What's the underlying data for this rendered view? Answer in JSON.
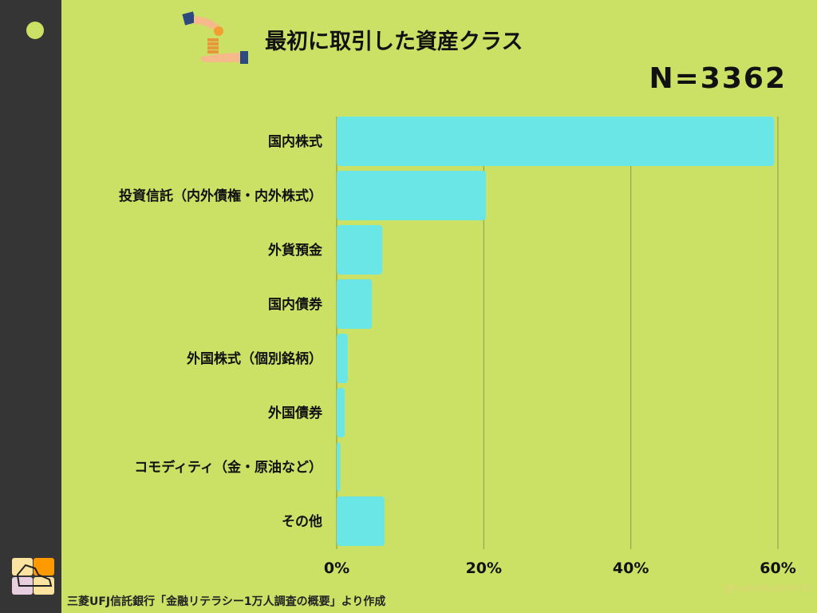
{
  "header": {
    "title": "最初に取引した資産クラス",
    "n_label": "N=3362"
  },
  "footer": {
    "source": "三菱UFJ信託銀行「金融リテラシー1万人調査の概要」より作成",
    "watermark": "@uminoxhiro"
  },
  "colors": {
    "background": "#cbe166",
    "bar": "#6ae6e6",
    "sidebar": "#353535"
  },
  "chart_data": {
    "type": "bar",
    "orientation": "horizontal",
    "title": "最初に取引した資産クラス",
    "categories": [
      "国内株式",
      "投資信託（内外債権・内外株式）",
      "外貨預金",
      "国内債券",
      "外国株式（個別銘柄）",
      "外国債券",
      "コモディティ（金・原油など）",
      "その他"
    ],
    "values": [
      59.5,
      20.3,
      6.2,
      4.8,
      1.5,
      1.1,
      0.5,
      6.5
    ],
    "xlim": [
      0,
      60
    ],
    "xticks": [
      "0%",
      "20%",
      "40%",
      "60%"
    ],
    "grid": true
  }
}
